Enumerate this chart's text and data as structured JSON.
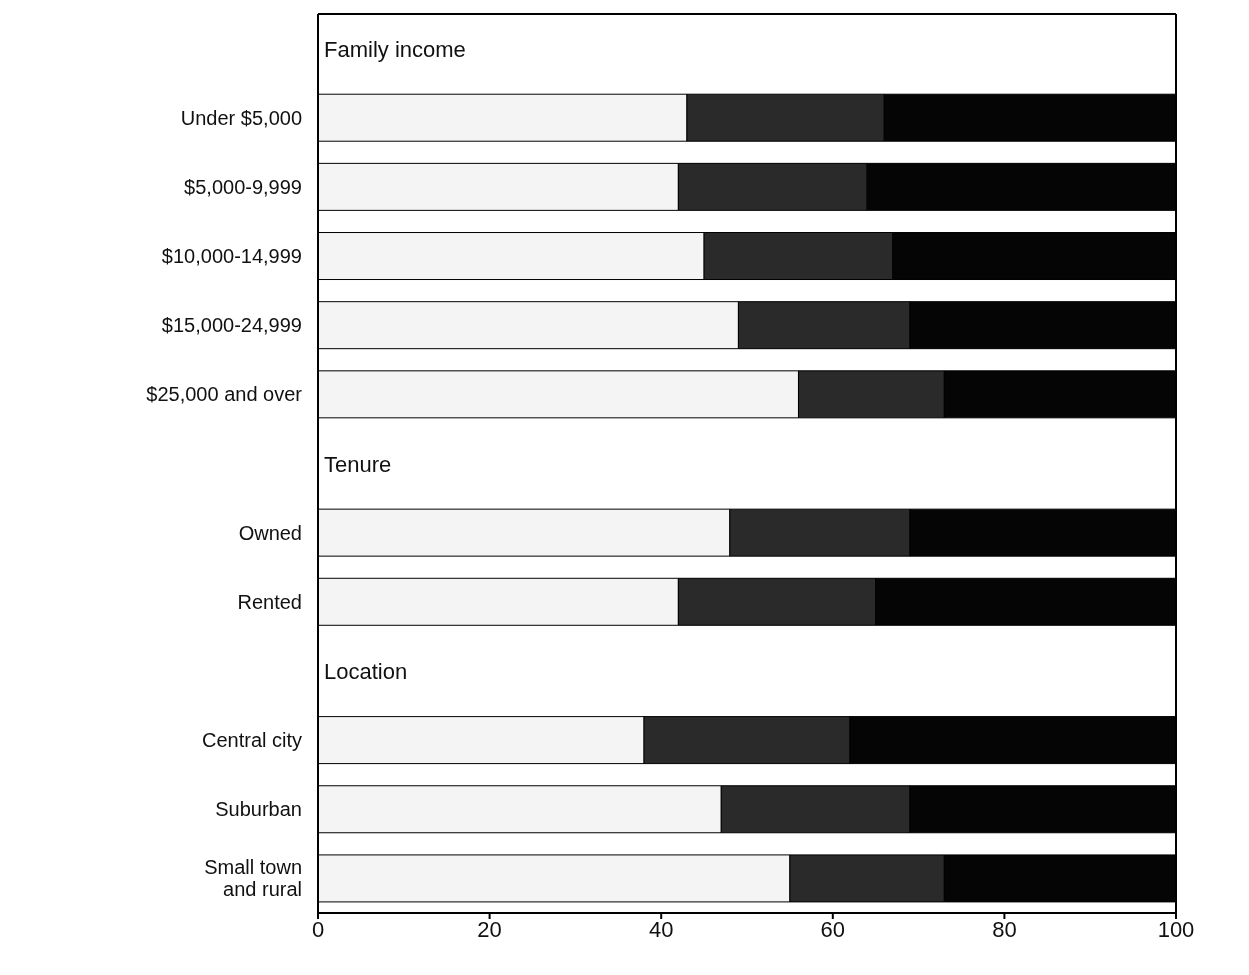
{
  "chart_data": {
    "type": "bar",
    "orientation": "horizontal",
    "stacked": true,
    "categories": [
      "Family income",
      "Under $5,000",
      "$5,000-9,999",
      "$10,000-14,999",
      "$15,000-24,999",
      "$25,000 and over",
      "Tenure",
      "Owned",
      "Rented",
      "Location",
      "Central city",
      "Suburban",
      "Small town and rural"
    ],
    "series": [
      {
        "color": "#f4f4f4",
        "values": [
          null,
          43,
          42,
          45,
          49,
          56,
          null,
          48,
          42,
          null,
          38,
          47,
          55
        ]
      },
      {
        "color": "#2a2a2a",
        "values": [
          null,
          23,
          22,
          22,
          20,
          17,
          null,
          21,
          23,
          null,
          24,
          22,
          18
        ]
      },
      {
        "color": "#050505",
        "values": [
          null,
          34,
          36,
          33,
          31,
          27,
          null,
          31,
          35,
          null,
          38,
          31,
          27
        ]
      }
    ],
    "xlim": [
      0,
      100
    ],
    "xticks": [
      0,
      20,
      40,
      60,
      80,
      100
    ],
    "grid": false,
    "legend": false
  }
}
